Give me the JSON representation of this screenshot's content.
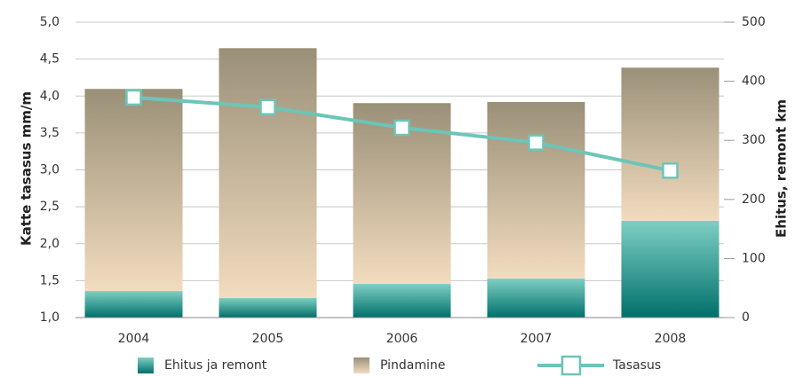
{
  "chart_data": {
    "type": "bar-line",
    "categories": [
      "2004",
      "2005",
      "2006",
      "2007",
      "2008"
    ],
    "ylabel": "Katte tasasus mm/m",
    "y2label": "Ehitus, remont km",
    "ylim": [
      1,
      5
    ],
    "yticks": [
      {
        "value": 1,
        "label": "1,0"
      },
      {
        "value": 1.5,
        "label": "1,5"
      },
      {
        "value": 2,
        "label": "2,0"
      },
      {
        "value": 2.5,
        "label": "2,5"
      },
      {
        "value": 3,
        "label": "3,0"
      },
      {
        "value": 3.5,
        "label": "3,5"
      },
      {
        "value": 4,
        "label": "4,0"
      },
      {
        "value": 4.5,
        "label": "4,5"
      },
      {
        "value": 5,
        "label": "5,0"
      }
    ],
    "y2lim": [
      0,
      500
    ],
    "y2ticks": [
      0,
      100,
      200,
      300,
      400,
      500
    ],
    "grid": true,
    "legend": "bottom",
    "series": [
      {
        "name": "Ehitus ja remont",
        "type": "bar",
        "axis": "y2",
        "color": "#00706a",
        "values": [
          45,
          33,
          57,
          66,
          164
        ]
      },
      {
        "name": "Pindamine",
        "type": "bar",
        "axis": "y2",
        "color": "#9a9078",
        "values": [
          342,
          423,
          306,
          299,
          259
        ]
      },
      {
        "name": "Tasasus",
        "type": "line",
        "axis": "y",
        "color": "#6cc5b8",
        "values": [
          3.98,
          3.85,
          3.57,
          3.37,
          2.99
        ]
      }
    ]
  }
}
